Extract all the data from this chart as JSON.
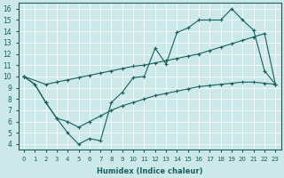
{
  "bg_color": "#cce8e8",
  "line_color": "#1a5f5f",
  "xlabel": "Humidex (Indice chaleur)",
  "xlim": [
    -0.5,
    23.5
  ],
  "ylim": [
    3.5,
    16.5
  ],
  "xticks": [
    0,
    1,
    2,
    3,
    4,
    5,
    6,
    7,
    8,
    9,
    10,
    11,
    12,
    13,
    14,
    15,
    16,
    17,
    18,
    19,
    20,
    21,
    22,
    23
  ],
  "yticks": [
    4,
    5,
    6,
    7,
    8,
    9,
    10,
    11,
    12,
    13,
    14,
    15,
    16
  ],
  "line1_x": [
    0,
    1,
    2,
    3,
    4,
    5,
    6,
    7,
    8,
    9,
    10,
    11,
    12,
    13,
    14,
    15,
    16,
    17,
    18,
    19,
    20,
    21,
    22,
    23
  ],
  "line1_y": [
    10.0,
    9.3,
    7.7,
    6.3,
    5.0,
    4.0,
    4.5,
    4.3,
    7.7,
    8.6,
    9.9,
    10.0,
    12.5,
    11.1,
    13.9,
    14.3,
    15.0,
    15.0,
    15.0,
    16.0,
    15.0,
    14.1,
    10.5,
    9.3
  ],
  "line2_x": [
    0,
    2,
    3,
    4,
    5,
    6,
    7,
    8,
    9,
    10,
    11,
    12,
    13,
    14,
    15,
    16,
    17,
    18,
    19,
    20,
    21,
    22,
    23
  ],
  "line2_y": [
    10.0,
    9.3,
    9.5,
    9.7,
    9.9,
    10.1,
    10.3,
    10.5,
    10.7,
    10.9,
    11.0,
    11.2,
    11.4,
    11.6,
    11.8,
    12.0,
    12.3,
    12.6,
    12.9,
    13.2,
    13.5,
    13.8,
    9.3
  ],
  "line3_x": [
    0,
    1,
    2,
    3,
    4,
    5,
    6,
    7,
    8,
    9,
    10,
    11,
    12,
    13,
    14,
    15,
    16,
    17,
    18,
    19,
    20,
    21,
    22,
    23
  ],
  "line3_y": [
    10.0,
    9.3,
    7.7,
    6.3,
    6.0,
    5.5,
    6.0,
    6.5,
    7.0,
    7.4,
    7.7,
    8.0,
    8.3,
    8.5,
    8.7,
    8.9,
    9.1,
    9.2,
    9.3,
    9.4,
    9.5,
    9.5,
    9.4,
    9.3
  ]
}
